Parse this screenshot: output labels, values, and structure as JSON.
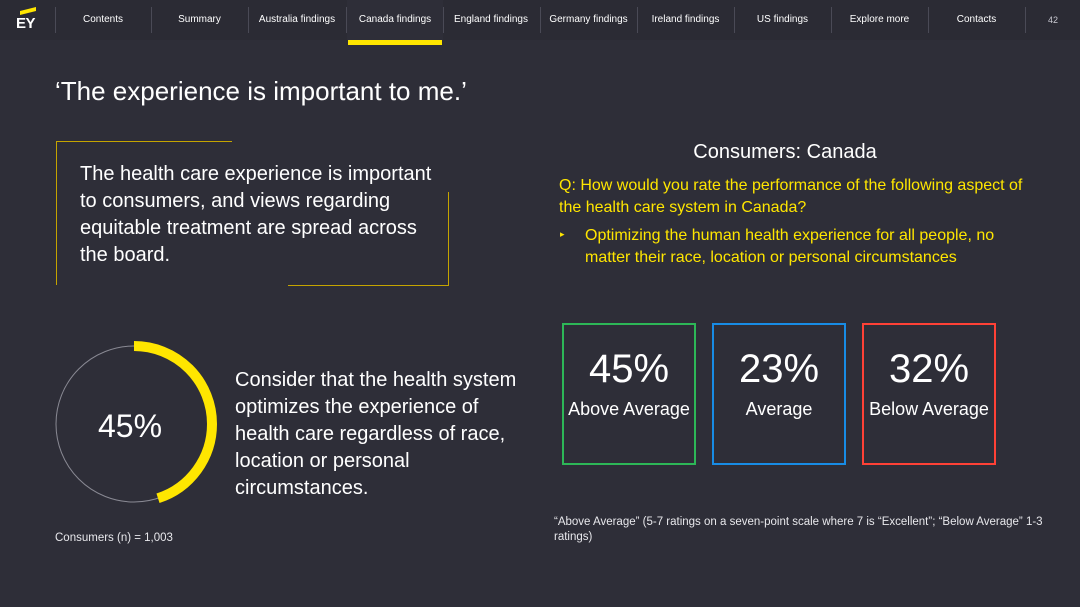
{
  "logo": {
    "text": "EY"
  },
  "nav": {
    "items": [
      {
        "label": "Contents"
      },
      {
        "label": "Summary"
      },
      {
        "label": "Australia findings"
      },
      {
        "label": "Canada findings",
        "active": true
      },
      {
        "label": "England findings"
      },
      {
        "label": "Germany findings"
      },
      {
        "label": "Ireland findings"
      },
      {
        "label": "US findings"
      },
      {
        "label": "Explore more"
      },
      {
        "label": "Contacts"
      }
    ],
    "page_number": "42"
  },
  "heading": "‘The experience is important to me.’",
  "intro": "The health care experience is important to consumers, and views regarding equitable treatment are spread across the board.",
  "donut": {
    "value_label": "45%",
    "value": 0.45,
    "accent_color": "#ffe600",
    "track_color": "#8a8a94"
  },
  "consider_text": "Consider that the health system optimizes the experience of health care regardless of race, location or personal circumstances.",
  "footnote_left": "Consumers (n) = 1,003",
  "right_panel": {
    "title": "Consumers: Canada",
    "question": "Q: How would you rate the performance of the following aspect of the health care system in Canada?",
    "bullet_marker": "▸",
    "bullet": "Optimizing the human health experience for all people, no matter their race, location or personal circumstances"
  },
  "stats": [
    {
      "value": "45%",
      "label": "Above Average",
      "color": "#2db757"
    },
    {
      "value": "23%",
      "label": "Average",
      "color": "#188ce5"
    },
    {
      "value": "32%",
      "label": "Below Average",
      "color": "#ff4136"
    }
  ],
  "footnote_right": "“Above Average” (5-7 ratings on a seven-point scale where 7 is “Excellent”; “Below Average” 1-3 ratings)"
}
